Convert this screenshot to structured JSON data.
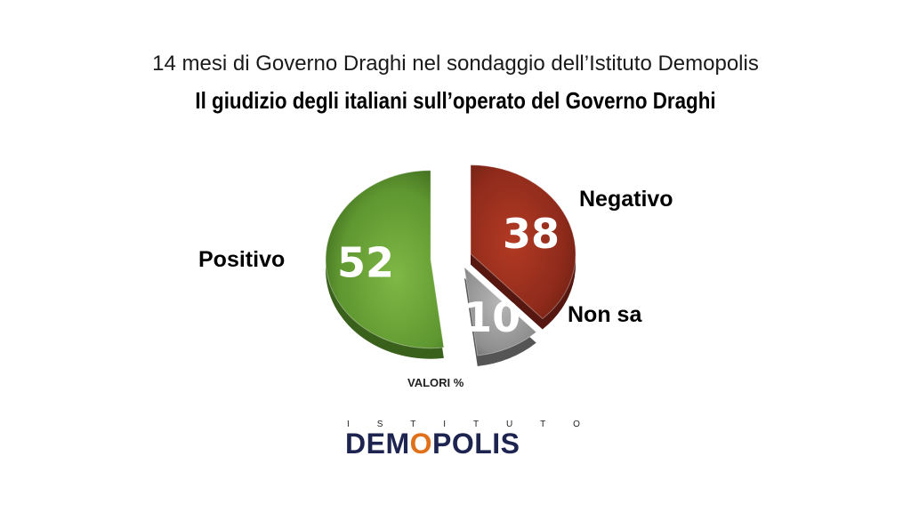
{
  "header": {
    "subtitle": "14 mesi di Governo Draghi nel sondaggio dell’Istituto Demopolis",
    "title": "Il giudizio degli italiani sull’operato del Governo Draghi"
  },
  "chart_data": {
    "type": "pie",
    "unit_note": "VALORI %",
    "slices": [
      {
        "label": "Positivo",
        "value": 52,
        "display": "52",
        "color": "#5e9630"
      },
      {
        "label": "Negativo",
        "value": 38,
        "display": "38",
        "color": "#8f2b1b"
      },
      {
        "label": "Non sa",
        "value": 10,
        "display": "10",
        "color": "#8e8e8e"
      }
    ]
  },
  "logo": {
    "top_text": [
      "I",
      "S",
      "T",
      "I",
      "T",
      "U",
      "T",
      "O"
    ],
    "main_before": "DEM",
    "main_accent": "O",
    "main_after": "POLIS"
  }
}
